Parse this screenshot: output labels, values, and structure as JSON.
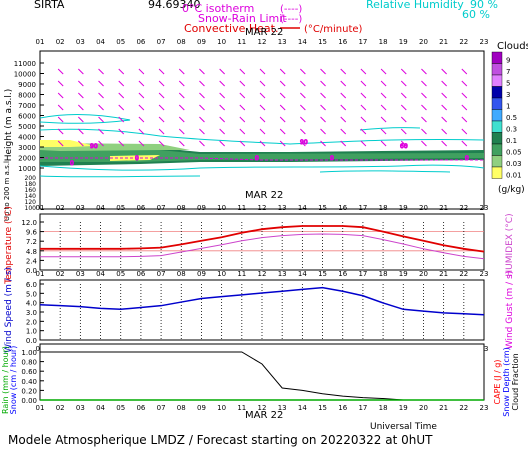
{
  "header": {
    "station": "SIRTA",
    "station_value": "94.69340",
    "legend_0c": "0°C isotherm",
    "legend_0c_sym": "(----)",
    "legend_snow": "Snow-Rain Limit",
    "legend_snow_sym": "(----)",
    "legend_conv": "Convective Heat.",
    "legend_conv_sym": "(°C/minute)",
    "legend_rh": "Relative Humidity",
    "legend_rh_90": "90 %",
    "legend_rh_60": "60 %"
  },
  "footer": {
    "title": "Modele Atmospherique LMDZ / Forecast starting on 20220322 at 0hUT",
    "xaxis_label": "Universal Time"
  },
  "colors": {
    "temperature": "#e00000",
    "humidex": "#cc44cc",
    "wind": "#0000cc",
    "rain": "#00aa00",
    "snow": "#0000ff",
    "cape": "#ff0000",
    "magenta": "#dd00dd",
    "cyan": "#00cccc"
  },
  "hours": [
    "01",
    "02",
    "03",
    "04",
    "05",
    "06",
    "07",
    "08",
    "09",
    "10",
    "11",
    "12",
    "13",
    "14",
    "15",
    "16",
    "17",
    "18",
    "19",
    "20",
    "21",
    "22",
    "23"
  ],
  "date_label": "MAR 22",
  "clouds": {
    "title": "Clouds",
    "unit": "(g/kg)",
    "scale_labels": [
      "9",
      "7",
      "5",
      "3",
      "1",
      "0.5",
      "0.3",
      "0.1",
      "0.05",
      "0.03",
      "0.01"
    ],
    "scale_colors": [
      "#a000c0",
      "#c050e0",
      "#e080ff",
      "#0000aa",
      "#3355ee",
      "#40aaff",
      "#40e0d0",
      "#208050",
      "#40a060",
      "#90d080",
      "#ffff66"
    ]
  },
  "chart_data": [
    {
      "type": "heatmap",
      "name": "clouds-vertical",
      "ylabel": "Height (m a.s.l.)",
      "ylabel2": "Up to 200 m a.s.l.",
      "yticks_upper": [
        "11000",
        "10000",
        "9000",
        "8000",
        "7000",
        "6000",
        "5000",
        "4000",
        "3000",
        "2000",
        "1000"
      ],
      "yticks_lower": [
        "200",
        "180",
        "160",
        "140",
        "120",
        "100"
      ],
      "rh_labels": [
        "90",
        "90",
        "60"
      ],
      "conv_labels": [
        "0",
        "0",
        "0",
        "0",
        "0"
      ]
    },
    {
      "type": "line",
      "name": "temperature-humidex",
      "ylabel": "Temperature (°C)",
      "ylabel2": "HUMIDEX (°C)",
      "ylim": [
        0,
        12
      ],
      "yticks": [
        "12.0",
        "9.6",
        "7.2",
        "4.8",
        "2.4",
        "0.0"
      ],
      "categories": [
        "01",
        "02",
        "03",
        "04",
        "05",
        "06",
        "07",
        "08",
        "09",
        "10",
        "11",
        "12",
        "13",
        "14",
        "15",
        "16",
        "17",
        "18",
        "19",
        "20",
        "21",
        "22",
        "23"
      ],
      "temperature": [
        5.3,
        5.3,
        5.3,
        5.3,
        5.3,
        5.4,
        5.6,
        6.4,
        7.3,
        8.2,
        9.3,
        10.2,
        10.7,
        11.0,
        11.0,
        11.0,
        10.7,
        9.6,
        8.4,
        7.3,
        6.2,
        5.3,
        4.6
      ],
      "humidex": [
        3.3,
        3.3,
        3.3,
        3.3,
        3.3,
        3.4,
        3.6,
        4.5,
        5.4,
        6.3,
        7.3,
        8.1,
        8.6,
        8.9,
        9.0,
        8.9,
        8.6,
        7.6,
        6.5,
        5.3,
        4.3,
        3.4,
        2.8
      ]
    },
    {
      "type": "line",
      "name": "wind",
      "ylabel": "Wind Speed (m / s)",
      "ylabel2": "Wind Gust (m / s)",
      "ylim": [
        0,
        6.2
      ],
      "yticks": [
        "6.0",
        "5.0",
        "4.0",
        "3.0",
        "2.0",
        "1.0",
        "0.0"
      ],
      "categories": [
        "01",
        "02",
        "03",
        "04",
        "05",
        "06",
        "07",
        "08",
        "09",
        "10",
        "11",
        "12",
        "13",
        "14",
        "15",
        "16",
        "17",
        "18",
        "19",
        "20",
        "21",
        "22",
        "23"
      ],
      "wind_speed": [
        3.9,
        3.8,
        3.7,
        3.5,
        3.4,
        3.6,
        3.8,
        4.2,
        4.6,
        4.8,
        5.0,
        5.2,
        5.4,
        5.6,
        5.8,
        5.4,
        4.9,
        4.1,
        3.4,
        3.2,
        3.0,
        2.9,
        2.8
      ]
    },
    {
      "type": "line",
      "name": "precipitation",
      "ylabel": "Rain (mm / hour)",
      "ylabel2": "Snow (cm / hour)",
      "ylabel_r": "CAPE (J / g)",
      "ylabel_r2": "Snow Depth (cm)",
      "ylabel_r3": "Cloud Fraction",
      "ylim": [
        0,
        1.0
      ],
      "yticks": [
        "1.00",
        "0.80",
        "0.60",
        "0.40",
        "0.20",
        "0.00"
      ],
      "categories": [
        "01",
        "02",
        "03",
        "04",
        "05",
        "06",
        "07",
        "08",
        "09",
        "10",
        "11",
        "12",
        "13",
        "14",
        "15",
        "16",
        "17",
        "18",
        "19",
        "20",
        "21",
        "22",
        "23"
      ],
      "cloud_fraction": [
        1.0,
        1.0,
        1.0,
        1.0,
        1.0,
        1.0,
        1.0,
        1.0,
        1.0,
        1.0,
        1.0,
        0.75,
        0.25,
        0.2,
        0.13,
        0.08,
        0.05,
        0.03,
        0.0,
        0.0,
        0.0,
        0.0,
        0.0
      ],
      "rain": [
        0,
        0,
        0,
        0,
        0,
        0,
        0,
        0,
        0,
        0,
        0,
        0,
        0,
        0,
        0,
        0,
        0,
        0,
        0,
        0,
        0,
        0,
        0
      ]
    }
  ]
}
